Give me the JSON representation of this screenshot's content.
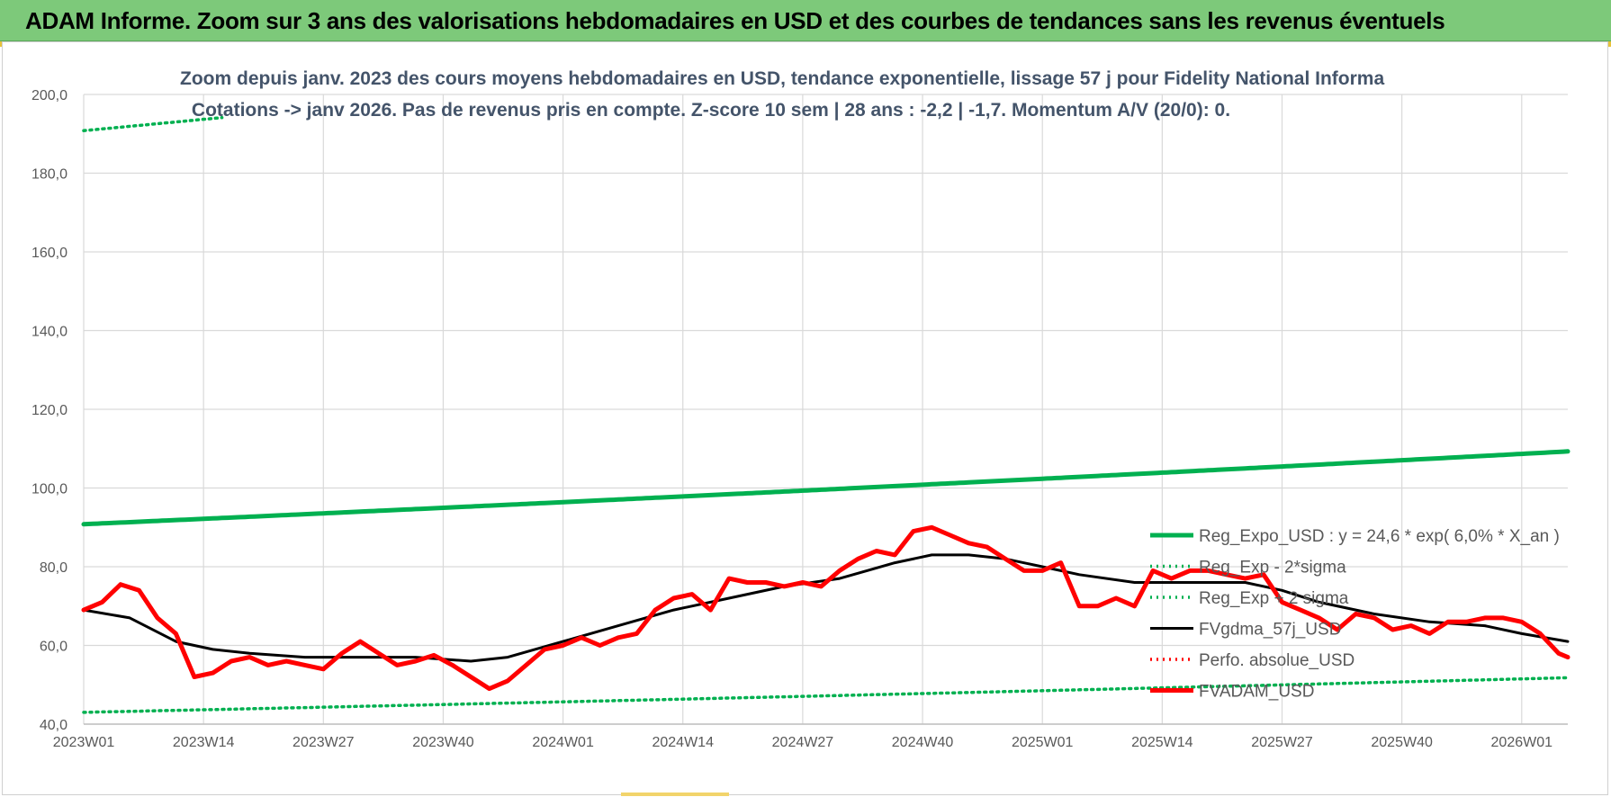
{
  "banner": {
    "title": "ADAM Informe. Zoom sur 3 ans des valorisations hebdomadaires en USD et des courbes de tendances sans les revenus éventuels"
  },
  "chart_data": {
    "type": "line",
    "title_line1": "Zoom depuis janv. 2023 des cours moyens hebdomadaires en USD, tendance exponentielle, lissage 57 j pour Fidelity National Informa",
    "title_line2": "Cotations -> janv 2026. Pas de revenus pris en compte. Z-score 10 sem | 28 ans : -2,2 | -1,7. Momentum A/V (20/0): 0.",
    "ylim": [
      40,
      200
    ],
    "y_ticks": [
      "40,0",
      "60,0",
      "80,0",
      "100,0",
      "120,0",
      "140,0",
      "160,0",
      "180,0",
      "200,0"
    ],
    "y_tick_values": [
      40,
      60,
      80,
      100,
      120,
      140,
      160,
      180,
      200
    ],
    "x_ticks": [
      "2023W01",
      "2023W14",
      "2023W27",
      "2023W40",
      "2024W01",
      "2024W14",
      "2024W27",
      "2024W40",
      "2025W01",
      "2025W14",
      "2025W27",
      "2025W40",
      "2026W01"
    ],
    "x_tick_index": [
      0,
      13,
      26,
      39,
      52,
      65,
      78,
      91,
      104,
      117,
      130,
      143,
      156
    ],
    "n_weeks": 162,
    "grid": true,
    "legend_position": "right",
    "series": [
      {
        "name": "Reg_Expo_USD : y = 24,6 * exp( 6,0% *  X_an )",
        "color": "#00b050",
        "style": "solid-thick",
        "x": [
          0,
          161
        ],
        "y": [
          90.8,
          109.3
        ]
      },
      {
        "name": "Reg_Exp - 2*sigma",
        "color": "#00b050",
        "style": "dotted",
        "x": [
          0,
          161
        ],
        "y": [
          43.0,
          51.8
        ]
      },
      {
        "name": "Reg_Exp + 2 sigma",
        "color": "#00b050",
        "style": "dotted",
        "x": [
          0,
          161
        ],
        "y": [
          190.8,
          229.7
        ],
        "visible_ranges": [
          [
            0,
            15
          ],
          [
            144,
            161
          ]
        ]
      },
      {
        "name": "FVgdma_57j_USD",
        "color": "#000000",
        "style": "solid",
        "x": [
          0,
          5,
          10,
          14,
          18,
          24,
          30,
          36,
          42,
          46,
          52,
          58,
          64,
          70,
          76,
          82,
          88,
          92,
          96,
          100,
          104,
          108,
          114,
          120,
          126,
          130,
          134,
          140,
          146,
          152,
          156,
          161
        ],
        "y": [
          69.0,
          67.0,
          61.0,
          59.0,
          58.0,
          57.0,
          57.0,
          57.0,
          56.0,
          57.0,
          61.0,
          65.0,
          69.0,
          72.0,
          75.0,
          77.0,
          81.0,
          83.0,
          83.0,
          82.0,
          80.0,
          78.0,
          76.0,
          76.0,
          76.0,
          74.0,
          71.0,
          68.0,
          66.0,
          65.0,
          63.0,
          61.0
        ]
      },
      {
        "name": "Perfo. absolue_USD",
        "color": "#ff0000",
        "style": "dotted",
        "x": [],
        "y": []
      },
      {
        "name": "FVADAM_USD",
        "color": "#ff0000",
        "style": "solid-thick",
        "x": [
          0,
          2,
          4,
          6,
          8,
          10,
          12,
          14,
          16,
          18,
          20,
          22,
          24,
          26,
          28,
          30,
          32,
          34,
          36,
          38,
          40,
          42,
          44,
          46,
          48,
          50,
          52,
          54,
          56,
          58,
          60,
          62,
          64,
          66,
          68,
          70,
          72,
          74,
          76,
          78,
          80,
          82,
          84,
          86,
          88,
          90,
          92,
          94,
          96,
          98,
          100,
          102,
          104,
          106,
          108,
          110,
          112,
          114,
          116,
          118,
          120,
          122,
          124,
          126,
          128,
          130,
          132,
          134,
          136,
          138,
          140,
          142,
          144,
          146,
          148,
          150,
          152,
          154,
          156,
          158,
          160,
          161
        ],
        "y": [
          69.0,
          71.0,
          75.5,
          74.0,
          67.0,
          63.0,
          52.0,
          53.0,
          56.0,
          57.0,
          55.0,
          56.0,
          55.0,
          54.0,
          58.0,
          61.0,
          58.0,
          55.0,
          56.0,
          57.5,
          55.0,
          52.0,
          49.0,
          51.0,
          55.0,
          59.0,
          60.0,
          62.0,
          60.0,
          62.0,
          63.0,
          69.0,
          72.0,
          73.0,
          69.0,
          77.0,
          76.0,
          76.0,
          75.0,
          76.0,
          75.0,
          79.0,
          82.0,
          84.0,
          83.0,
          89.0,
          90.0,
          88.0,
          86.0,
          85.0,
          82.0,
          79.0,
          79.0,
          81.0,
          70.0,
          70.0,
          72.0,
          70.0,
          79.0,
          77.0,
          79.0,
          79.0,
          78.0,
          77.0,
          78.0,
          71.0,
          69.0,
          67.0,
          64.0,
          68.0,
          67.0,
          64.0,
          65.0,
          63.0,
          66.0,
          66.0,
          67.0,
          67.0,
          66.0,
          63.0,
          58.0,
          57.0
        ]
      }
    ]
  }
}
